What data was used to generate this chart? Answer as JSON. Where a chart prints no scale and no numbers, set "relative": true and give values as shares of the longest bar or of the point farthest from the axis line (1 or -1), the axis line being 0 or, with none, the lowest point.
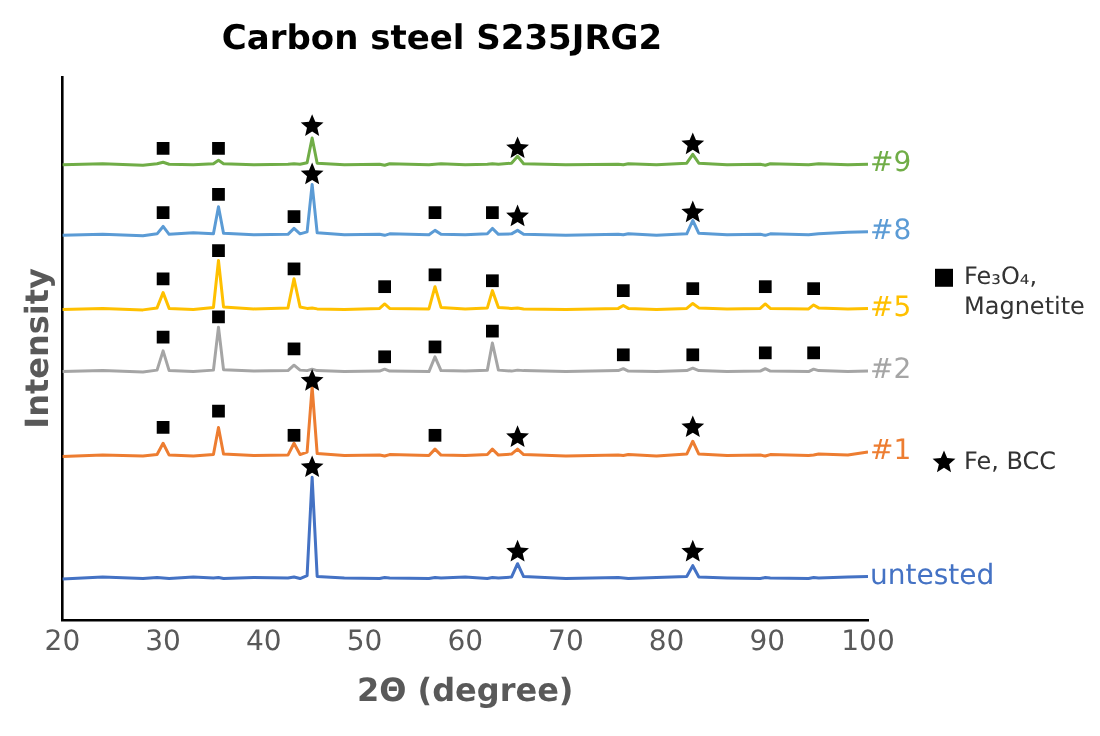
{
  "chart_data": {
    "type": "line",
    "title": "Carbon steel S235JRG2",
    "xlabel": "2Θ (degree)",
    "ylabel": "Intensity",
    "relative": true,
    "x": [
      20,
      24,
      28,
      29.4,
      30,
      30.6,
      33,
      35,
      35.5,
      36,
      39,
      42.4,
      43,
      43.6,
      44.3,
      44.8,
      45.3,
      48,
      51.5,
      52,
      52.5,
      56.4,
      57,
      57.6,
      60,
      62.2,
      62.7,
      63.3,
      64.6,
      65.2,
      65.8,
      70,
      75.2,
      75.7,
      76.2,
      79,
      82,
      82.6,
      83.2,
      86,
      89.3,
      89.8,
      90.3,
      94.1,
      94.6,
      95.1,
      98,
      100
    ],
    "xlim": [
      20,
      100
    ],
    "xticks": [
      20,
      30,
      40,
      50,
      60,
      70,
      80,
      90,
      100
    ],
    "grid": false,
    "legend": "right",
    "marker": "none",
    "line_style": "solid",
    "series": [
      {
        "name": "untested",
        "color": "#4472c4",
        "values": [
          0.083,
          0.087,
          0.084,
          0.086,
          0.085,
          0.084,
          0.087,
          0.085,
          0.086,
          0.084,
          0.086,
          0.085,
          0.087,
          0.084,
          0.09,
          0.289,
          0.088,
          0.085,
          0.084,
          0.086,
          0.085,
          0.084,
          0.086,
          0.085,
          0.087,
          0.084,
          0.086,
          0.085,
          0.087,
          0.114,
          0.088,
          0.084,
          0.086,
          0.085,
          0.084,
          0.086,
          0.088,
          0.11,
          0.087,
          0.085,
          0.084,
          0.086,
          0.085,
          0.084,
          0.086,
          0.085,
          0.087,
          0.088
        ]
      },
      {
        "name": "#1",
        "color": "#ed7d31",
        "values": [
          0.331,
          0.334,
          0.332,
          0.335,
          0.358,
          0.334,
          0.332,
          0.335,
          0.39,
          0.336,
          0.333,
          0.334,
          0.358,
          0.335,
          0.34,
          0.472,
          0.337,
          0.333,
          0.334,
          0.332,
          0.335,
          0.333,
          0.346,
          0.334,
          0.333,
          0.335,
          0.346,
          0.334,
          0.336,
          0.346,
          0.335,
          0.332,
          0.334,
          0.333,
          0.335,
          0.332,
          0.336,
          0.362,
          0.336,
          0.333,
          0.334,
          0.332,
          0.335,
          0.333,
          0.334,
          0.336,
          0.334,
          0.34
        ]
      },
      {
        "name": "#2",
        "color": "#a5a5a5",
        "values": [
          0.503,
          0.505,
          0.502,
          0.506,
          0.545,
          0.505,
          0.503,
          0.506,
          0.593,
          0.507,
          0.504,
          0.505,
          0.516,
          0.506,
          0.505,
          0.508,
          0.505,
          0.503,
          0.504,
          0.508,
          0.504,
          0.503,
          0.533,
          0.505,
          0.504,
          0.506,
          0.561,
          0.506,
          0.504,
          0.506,
          0.505,
          0.503,
          0.505,
          0.509,
          0.504,
          0.503,
          0.505,
          0.51,
          0.505,
          0.503,
          0.504,
          0.509,
          0.504,
          0.503,
          0.508,
          0.505,
          0.503,
          0.504
        ]
      },
      {
        "name": "#5",
        "color": "#ffc000",
        "values": [
          0.629,
          0.631,
          0.628,
          0.632,
          0.663,
          0.631,
          0.629,
          0.633,
          0.728,
          0.634,
          0.63,
          0.632,
          0.691,
          0.634,
          0.631,
          0.632,
          0.63,
          0.629,
          0.631,
          0.64,
          0.631,
          0.63,
          0.675,
          0.633,
          0.63,
          0.632,
          0.667,
          0.633,
          0.631,
          0.632,
          0.63,
          0.629,
          0.631,
          0.637,
          0.631,
          0.629,
          0.631,
          0.641,
          0.632,
          0.63,
          0.631,
          0.64,
          0.631,
          0.63,
          0.638,
          0.632,
          0.63,
          0.631
        ]
      },
      {
        "name": "#8",
        "color": "#5b9bd5",
        "values": [
          0.779,
          0.781,
          0.778,
          0.782,
          0.797,
          0.781,
          0.784,
          0.782,
          0.837,
          0.783,
          0.78,
          0.781,
          0.793,
          0.782,
          0.786,
          0.882,
          0.784,
          0.78,
          0.781,
          0.779,
          0.782,
          0.78,
          0.789,
          0.781,
          0.78,
          0.782,
          0.793,
          0.781,
          0.782,
          0.789,
          0.781,
          0.779,
          0.781,
          0.78,
          0.782,
          0.779,
          0.782,
          0.809,
          0.783,
          0.78,
          0.781,
          0.779,
          0.782,
          0.78,
          0.781,
          0.782,
          0.785,
          0.786
        ]
      },
      {
        "name": "#9",
        "color": "#70ad47",
        "values": [
          0.922,
          0.924,
          0.921,
          0.924,
          0.927,
          0.923,
          0.922,
          0.924,
          0.931,
          0.924,
          0.922,
          0.923,
          0.924,
          0.923,
          0.926,
          0.976,
          0.925,
          0.922,
          0.923,
          0.921,
          0.924,
          0.922,
          0.923,
          0.924,
          0.922,
          0.923,
          0.924,
          0.923,
          0.925,
          0.939,
          0.924,
          0.922,
          0.923,
          0.922,
          0.924,
          0.922,
          0.925,
          0.943,
          0.925,
          0.922,
          0.923,
          0.921,
          0.924,
          0.922,
          0.923,
          0.924,
          0.922,
          0.923
        ]
      },
      {
        "name": "Fe₃O₄, Magnetite",
        "type": "scatter",
        "marker": "square",
        "color": "#000000",
        "x": [
          30,
          35.5,
          30,
          35.5,
          43,
          57,
          62.7,
          30,
          35.5,
          43,
          52,
          57,
          62.7,
          75.7,
          82.6,
          89.8,
          94.6,
          30,
          35.5,
          43,
          52,
          57,
          62.7,
          75.7,
          82.6,
          89.8,
          94.6,
          30,
          35.5,
          43,
          57
        ],
        "values": [
          0.955,
          0.955,
          0.825,
          0.862,
          0.817,
          0.825,
          0.825,
          0.691,
          0.748,
          0.711,
          0.675,
          0.699,
          0.687,
          0.667,
          0.671,
          0.675,
          0.671,
          0.573,
          0.614,
          0.549,
          0.533,
          0.553,
          0.585,
          0.537,
          0.537,
          0.541,
          0.541,
          0.39,
          0.423,
          0.374,
          0.374
        ]
      },
      {
        "name": "Fe, BCC",
        "type": "scatter",
        "marker": "star",
        "color": "#000000",
        "x": [
          44.8,
          65.2,
          82.6,
          44.8,
          65.2,
          82.6,
          44.8,
          65.2,
          82.6,
          44.8,
          65.2,
          82.6
        ],
        "values": [
          1.0,
          0.955,
          0.963,
          0.902,
          0.817,
          0.825,
          0.484,
          0.37,
          0.39,
          0.309,
          0.138,
          0.138
        ]
      }
    ]
  }
}
